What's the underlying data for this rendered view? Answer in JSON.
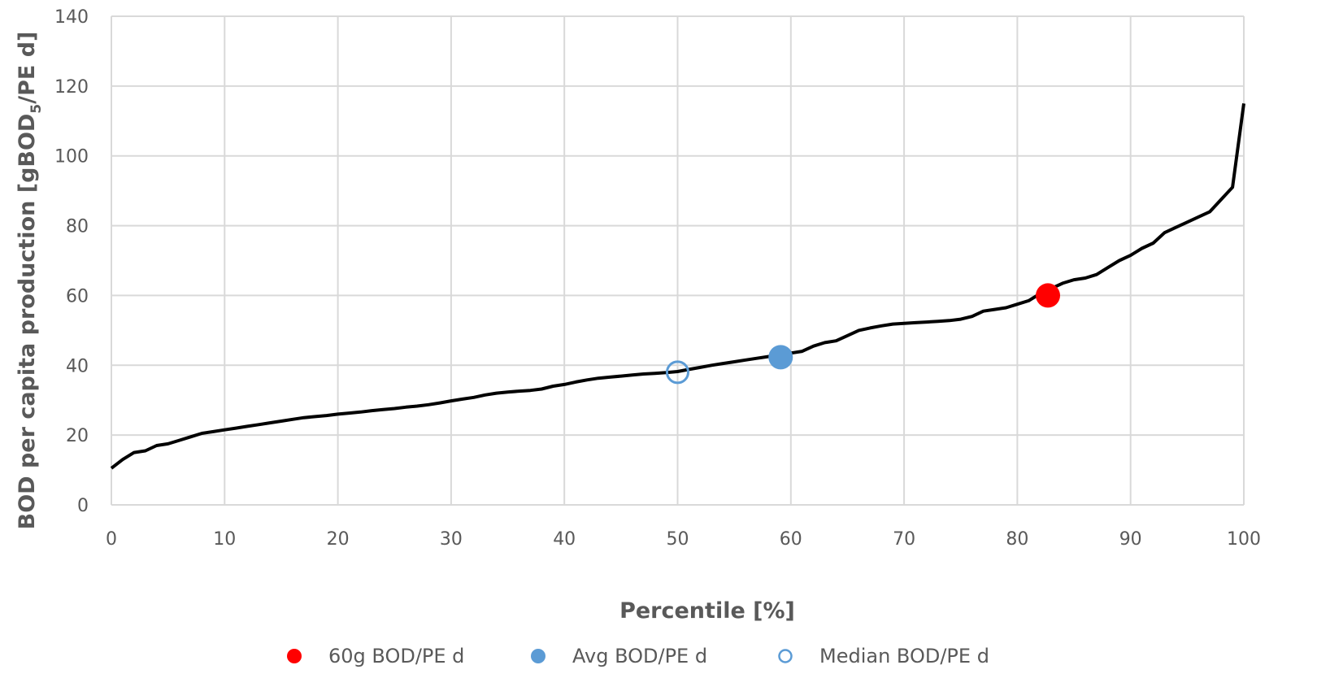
{
  "chart_data": {
    "type": "line",
    "xlabel": "Percentile [%]",
    "ylabel": {
      "main": "BOD per capita production  [gBOD",
      "sub": "5",
      "tail": "/PE d]"
    },
    "xlim": [
      0,
      100
    ],
    "ylim": [
      0,
      140
    ],
    "xticks": [
      0,
      10,
      20,
      30,
      40,
      50,
      60,
      70,
      80,
      90,
      100
    ],
    "yticks": [
      0,
      20,
      40,
      60,
      80,
      100,
      120,
      140
    ],
    "grid": true,
    "legend_position": "bottom",
    "series": [
      {
        "type": "line",
        "color": "#000000",
        "x": [
          0,
          1,
          2,
          3,
          4,
          5,
          6,
          7,
          8,
          9,
          10,
          11,
          12,
          13,
          14,
          15,
          16,
          17,
          18,
          19,
          20,
          21,
          22,
          23,
          24,
          25,
          26,
          27,
          28,
          29,
          30,
          31,
          32,
          33,
          34,
          35,
          36,
          37,
          38,
          39,
          40,
          41,
          42,
          43,
          44,
          45,
          46,
          47,
          48,
          49,
          50,
          51,
          52,
          53,
          54,
          55,
          56,
          57,
          58,
          59,
          60,
          61,
          62,
          63,
          64,
          65,
          66,
          67,
          68,
          69,
          70,
          71,
          72,
          73,
          74,
          75,
          76,
          77,
          78,
          79,
          80,
          81,
          82,
          83,
          84,
          85,
          86,
          87,
          88,
          89,
          90,
          91,
          92,
          93,
          94,
          95,
          96,
          97,
          98,
          99,
          100
        ],
        "y": [
          10.5,
          13,
          15,
          15.5,
          17,
          17.5,
          18.5,
          19.5,
          20.5,
          21,
          21.5,
          22,
          22.5,
          23,
          23.5,
          24,
          24.5,
          25,
          25.3,
          25.6,
          26,
          26.3,
          26.6,
          27,
          27.3,
          27.6,
          28,
          28.3,
          28.7,
          29.2,
          29.8,
          30.3,
          30.8,
          31.5,
          32,
          32.3,
          32.6,
          32.8,
          33.2,
          34,
          34.5,
          35.2,
          35.8,
          36.3,
          36.6,
          36.9,
          37.2,
          37.5,
          37.7,
          37.9,
          38.2,
          38.8,
          39.4,
          40,
          40.5,
          41,
          41.5,
          42,
          42.5,
          43,
          43.5,
          44,
          45.5,
          46.5,
          47,
          48.5,
          50,
          50.7,
          51.3,
          51.8,
          52,
          52.2,
          52.4,
          52.6,
          52.8,
          53.2,
          54,
          55.5,
          56,
          56.5,
          57.5,
          58.5,
          60.5,
          62,
          63.5,
          64.5,
          65,
          66,
          68,
          70,
          71.5,
          73.5,
          75,
          78,
          79.5,
          81,
          82.5,
          84,
          87.5,
          91,
          115
        ]
      }
    ],
    "markers": [
      {
        "name": "60g BOD/PE d",
        "x": 82.7,
        "y": 60,
        "color": "#ff0000",
        "style": "filled"
      },
      {
        "name": "Avg BOD/PE d",
        "x": 59.1,
        "y": 42.3,
        "color": "#5b9bd5",
        "style": "filled"
      },
      {
        "name": "Median BOD/PE d",
        "x": 50,
        "y": 38,
        "color": "#5b9bd5",
        "style": "hollow"
      }
    ]
  },
  "legend": [
    {
      "label": "60g BOD/PE d",
      "color": "#ff0000",
      "style": "filled"
    },
    {
      "label": "Avg BOD/PE d",
      "color": "#5b9bd5",
      "style": "filled"
    },
    {
      "label": "Median BOD/PE d",
      "color": "#5b9bd5",
      "style": "hollow"
    }
  ]
}
